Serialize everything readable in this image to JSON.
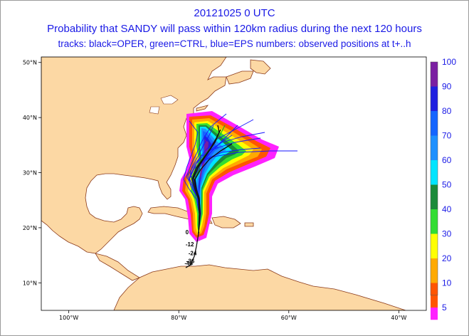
{
  "title": {
    "line1": "20121025 0 UTC",
    "line2": "Probability that SANDY will pass within 120km radius during the next 120 hours",
    "line3": "tracks: black=OPER, green=CTRL, blue=EPS numbers: observed positions at t+..h"
  },
  "map": {
    "lon_range": [
      -105,
      -35
    ],
    "lat_range": [
      5,
      51
    ],
    "ocean_color": "#ffffff",
    "land_color": "#fcd8a4",
    "coast_color": "#8b3a1a",
    "lat_ticks": [
      {
        "value": 50,
        "label": "50°N"
      },
      {
        "value": 40,
        "label": "40°N"
      },
      {
        "value": 30,
        "label": "30°N"
      },
      {
        "value": 20,
        "label": "20°N"
      },
      {
        "value": 10,
        "label": "10°N"
      }
    ],
    "lon_ticks": [
      {
        "value": -100,
        "label": "100°W"
      },
      {
        "value": -80,
        "label": "80°W"
      },
      {
        "value": -60,
        "label": "60°W"
      },
      {
        "value": -40,
        "label": "40°W"
      }
    ]
  },
  "observed_positions": [
    {
      "label": "0",
      "lon": -78.5,
      "lat": 18.8
    },
    {
      "label": "-12",
      "lon": -78.0,
      "lat": 16.6
    },
    {
      "label": "-24",
      "lon": -77.5,
      "lat": 15.0
    },
    {
      "label": "-36",
      "lon": -77.9,
      "lat": 13.6
    },
    {
      "label": "-48",
      "lon": -78.2,
      "lat": 13.2
    }
  ],
  "colorbar": {
    "labels": [
      "100",
      "90",
      "80",
      "70",
      "60",
      "50",
      "40",
      "30",
      "20",
      "10",
      "5"
    ],
    "colors": [
      "#7b1fa2",
      "#2020e0",
      "#1565ff",
      "#1e90ff",
      "#00e5ff",
      "#1b8a3a",
      "#33dd33",
      "#ffff00",
      "#ffaa00",
      "#ff5500",
      "#ff22ff"
    ]
  }
}
